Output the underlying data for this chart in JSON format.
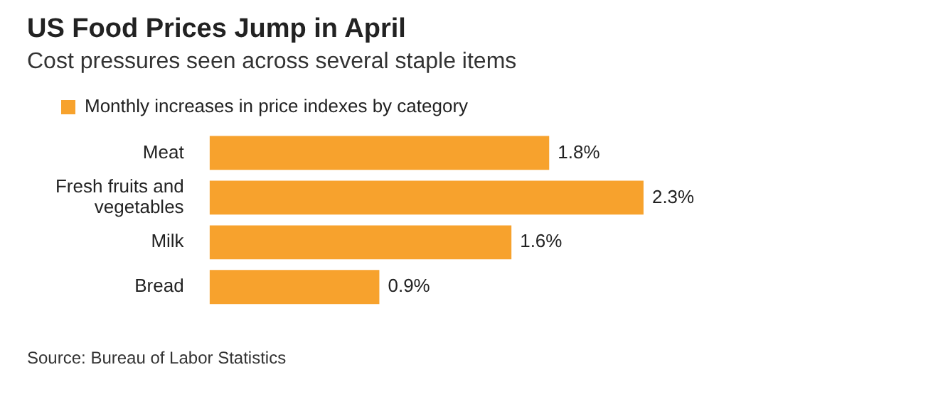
{
  "chart_data": {
    "type": "bar",
    "orientation": "horizontal",
    "title": "US Food Prices Jump in April",
    "subtitle": "Cost pressures seen across several staple items",
    "categories": [
      "Meat",
      "Fresh fruits and vegetables",
      "Milk",
      "Bread"
    ],
    "series": [
      {
        "name": "Monthly increases in price indexes by category",
        "color": "#f7a22d",
        "values": [
          1.8,
          2.3,
          1.6,
          0.9
        ],
        "value_labels": [
          "1.8%",
          "2.3%",
          "1.6%",
          "0.9%"
        ]
      }
    ],
    "legend": "top left",
    "grid": false,
    "tick_labels": "y",
    "annotations": [
      "Source: Bureau of Labor Statistics"
    ]
  }
}
